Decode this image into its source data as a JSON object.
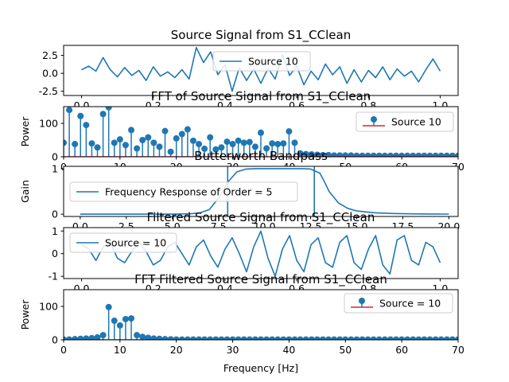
{
  "chart_data": [
    {
      "type": "line",
      "title": "Source Signal from S1_CClean",
      "xlabel": "",
      "ylabel": "",
      "xlim": [
        -0.05,
        1.05
      ],
      "ylim": [
        -3.1,
        3.9
      ],
      "xticks": [
        "0.0",
        "0.2",
        "0.4",
        "0.6",
        "0.8",
        "1.0"
      ],
      "yticks": [
        "2.5",
        "0.0",
        "-2.5"
      ],
      "series": [
        {
          "name": "Source 10",
          "color": "#1f77b4",
          "x": [
            0.0,
            0.02,
            0.04,
            0.06,
            0.08,
            0.1,
            0.12,
            0.14,
            0.16,
            0.18,
            0.2,
            0.22,
            0.24,
            0.26,
            0.28,
            0.3,
            0.32,
            0.34,
            0.36,
            0.38,
            0.4,
            0.42,
            0.44,
            0.46,
            0.48,
            0.5,
            0.52,
            0.54,
            0.56,
            0.58,
            0.6,
            0.62,
            0.64,
            0.66,
            0.68,
            0.7,
            0.72,
            0.74,
            0.76,
            0.78,
            0.8,
            0.82,
            0.84,
            0.86,
            0.88,
            0.9,
            0.92,
            0.94,
            0.96,
            0.98,
            1.0
          ],
          "y": [
            0.5,
            1.0,
            0.3,
            2.2,
            0.5,
            -0.5,
            0.8,
            -0.3,
            0.4,
            -1.0,
            0.9,
            -0.4,
            0.2,
            -0.6,
            0.5,
            -0.8,
            3.6,
            1.5,
            3.0,
            -0.2,
            1.2,
            -2.5,
            0.8,
            -1.0,
            0.6,
            -1.4,
            0.7,
            -0.8,
            2.6,
            -0.3,
            1.0,
            -1.6,
            0.3,
            -0.9,
            1.3,
            -0.2,
            0.9,
            -1.4,
            0.5,
            -1.2,
            0.4,
            -0.6,
            0.9,
            -0.9,
            0.6,
            -0.4,
            0.3,
            -1.2,
            0.5,
            2.0,
            0.3
          ]
        }
      ]
    },
    {
      "type": "stem",
      "title": "FFT of Source Signal from S1_CClean",
      "xlabel": "",
      "ylabel": "Power",
      "xlim": [
        0,
        70
      ],
      "ylim": [
        0,
        150
      ],
      "xticks": [
        "0",
        "10",
        "20",
        "30",
        "40",
        "50",
        "60",
        "70"
      ],
      "yticks": [
        "0",
        "100"
      ],
      "series": [
        {
          "name": "Source 10",
          "color": "#1f77b4",
          "x": [
            0,
            1,
            2,
            3,
            4,
            5,
            6,
            7,
            8,
            9,
            10,
            11,
            12,
            13,
            14,
            15,
            16,
            17,
            18,
            19,
            20,
            21,
            22,
            23,
            24,
            25,
            26,
            27,
            28,
            29,
            30,
            31,
            32,
            33,
            34,
            35,
            36,
            37,
            38,
            39,
            40,
            41,
            42,
            43,
            44,
            45,
            46,
            47,
            48,
            49,
            50,
            51,
            52,
            53,
            54,
            55,
            56,
            57,
            58,
            59,
            60,
            61,
            62,
            63,
            64,
            65,
            66,
            67,
            68,
            69,
            70
          ],
          "y": [
            42,
            140,
            38,
            122,
            95,
            40,
            28,
            128,
            148,
            42,
            52,
            35,
            80,
            25,
            50,
            58,
            42,
            30,
            77,
            15,
            55,
            68,
            82,
            48,
            38,
            24,
            58,
            22,
            28,
            45,
            38,
            48,
            42,
            44,
            30,
            72,
            25,
            40,
            38,
            40,
            76,
            42,
            10,
            8,
            7,
            6,
            5,
            5,
            4,
            4,
            4,
            4,
            3,
            3,
            3,
            3,
            3,
            3,
            3,
            3,
            3,
            3,
            3,
            3,
            3,
            3,
            3,
            3,
            3,
            3,
            3
          ]
        }
      ]
    },
    {
      "type": "line",
      "title": "Butterworth Bandpass",
      "xlabel": "",
      "ylabel": "Gain",
      "xlim": [
        -0.9,
        20.5
      ],
      "ylim": [
        -0.05,
        1.05
      ],
      "xticks": [
        "0.0",
        "2.5",
        "5.0",
        "7.5",
        "10.0",
        "12.5",
        "15.0",
        "17.5",
        "20.0"
      ],
      "yticks": [
        "1",
        "0"
      ],
      "vlines": [
        8,
        12.7
      ],
      "series": [
        {
          "name": "Frequency Response of Order = 5",
          "color": "#1f77b4",
          "x": [
            0,
            1,
            2,
            3,
            4,
            5,
            6,
            6.5,
            7,
            7.5,
            8,
            8.5,
            9,
            9.5,
            10,
            10.5,
            11,
            11.5,
            12,
            12.5,
            13,
            13.2,
            13.5,
            14,
            14.5,
            15,
            16,
            17,
            18,
            19,
            20
          ],
          "y": [
            0,
            0,
            0,
            0,
            0,
            0,
            0.01,
            0.03,
            0.1,
            0.35,
            0.7,
            0.93,
            0.99,
            1.0,
            1.0,
            1.0,
            1.0,
            1.0,
            1.0,
            0.99,
            0.9,
            0.75,
            0.5,
            0.25,
            0.13,
            0.07,
            0.03,
            0.015,
            0.008,
            0.005,
            0.003
          ]
        }
      ]
    },
    {
      "type": "line",
      "title": "Filtered Source Signal from S1_CClean",
      "xlabel": "",
      "ylabel": "",
      "xlim": [
        -0.05,
        1.05
      ],
      "ylim": [
        -1.1,
        1.15
      ],
      "xticks": [
        "0.0",
        "0.2",
        "0.4",
        "0.6",
        "0.8",
        "1.0"
      ],
      "yticks": [
        "1",
        "0",
        "-1"
      ],
      "series": [
        {
          "name": "Source = 10",
          "color": "#1f77b4",
          "x": [
            0.0,
            0.02,
            0.04,
            0.06,
            0.08,
            0.1,
            0.12,
            0.14,
            0.16,
            0.18,
            0.2,
            0.22,
            0.24,
            0.26,
            0.28,
            0.3,
            0.32,
            0.34,
            0.36,
            0.38,
            0.4,
            0.42,
            0.44,
            0.46,
            0.48,
            0.5,
            0.52,
            0.54,
            0.56,
            0.58,
            0.6,
            0.62,
            0.64,
            0.66,
            0.68,
            0.7,
            0.72,
            0.74,
            0.76,
            0.78,
            0.8,
            0.82,
            0.84,
            0.86,
            0.88,
            0.9,
            0.92,
            0.94,
            0.96,
            0.98,
            1.0
          ],
          "y": [
            0.4,
            0.2,
            -0.3,
            0.3,
            0.5,
            -0.2,
            -0.4,
            0.1,
            0.5,
            0.1,
            -0.5,
            -0.3,
            0.3,
            0.5,
            0.0,
            -0.5,
            0.3,
            0.6,
            -0.1,
            -0.6,
            0.2,
            0.7,
            0.0,
            -0.8,
            0.3,
            1.0,
            -0.2,
            -1.0,
            0.2,
            0.8,
            -0.3,
            -0.8,
            0.4,
            0.7,
            -0.4,
            -0.6,
            0.5,
            0.8,
            -0.4,
            -0.7,
            0.2,
            0.8,
            -0.5,
            -0.9,
            0.6,
            0.8,
            -0.3,
            -0.5,
            0.5,
            0.3,
            -0.4
          ]
        }
      ]
    },
    {
      "type": "stem",
      "title": "FFT Filtered Source Signal from S1_CClean",
      "xlabel": "Frequency [Hz]",
      "ylabel": "Power",
      "xlim": [
        0,
        70
      ],
      "ylim": [
        0,
        150
      ],
      "xticks": [
        "0",
        "10",
        "20",
        "30",
        "40",
        "50",
        "60",
        "70"
      ],
      "yticks": [
        "0",
        "100"
      ],
      "series": [
        {
          "name": "Source = 10",
          "color": "#1f77b4",
          "x": [
            0,
            1,
            2,
            3,
            4,
            5,
            6,
            7,
            8,
            9,
            10,
            11,
            12,
            13,
            14,
            15,
            16,
            17,
            18,
            19,
            20,
            21,
            22,
            23,
            24,
            25,
            26,
            27,
            28,
            29,
            30,
            31,
            32,
            33,
            34,
            35,
            36,
            37,
            38,
            39,
            40,
            41,
            42,
            43,
            44,
            45,
            46,
            47,
            48,
            49,
            50,
            51,
            52,
            53,
            54,
            55,
            56,
            57,
            58,
            59,
            60,
            61,
            62,
            63,
            64,
            65,
            66,
            67,
            68,
            69,
            70
          ],
          "y": [
            1,
            1,
            2,
            3,
            4,
            5,
            7,
            14,
            98,
            57,
            43,
            62,
            64,
            14,
            9,
            6,
            4,
            3,
            2,
            1.5,
            1,
            1,
            1,
            1,
            1,
            1,
            1,
            1,
            1,
            1,
            1,
            1,
            1,
            1,
            1,
            1,
            1,
            1,
            1,
            1,
            1,
            1,
            1,
            1,
            1,
            1,
            1,
            1,
            1,
            1,
            1,
            1,
            1,
            1,
            1,
            1,
            1,
            1,
            1,
            1,
            1,
            1,
            1,
            1,
            1,
            1,
            1,
            1,
            1,
            1,
            1
          ]
        }
      ]
    }
  ]
}
